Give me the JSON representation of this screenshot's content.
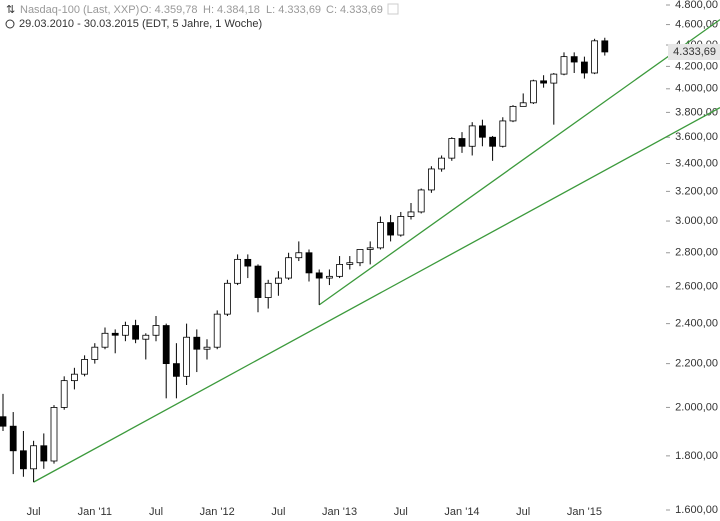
{
  "chart_data": {
    "type": "candlestick",
    "title": "Nasdaq-100 (Last, XXP)",
    "ohlc_summary": [
      "O: 4.359,78",
      "H: 4.384,18",
      "L: 4.333,69",
      "C: 4.333,69"
    ],
    "subtitle": "29.03.2010 - 30.03.2015 (EDT, 5 Jahre, 1 Woche)",
    "categories": [
      null,
      null,
      null,
      "Jul",
      null,
      null,
      null,
      null,
      null,
      "Jan '11",
      null,
      null,
      null,
      null,
      null,
      "Jul",
      null,
      null,
      null,
      null,
      null,
      "Jan '12",
      null,
      null,
      null,
      null,
      null,
      "Jul",
      null,
      null,
      null,
      null,
      null,
      "Jan '13",
      null,
      null,
      null,
      null,
      null,
      "Jul",
      null,
      null,
      null,
      null,
      null,
      "Jan '14",
      null,
      null,
      null,
      null,
      null,
      "Jul",
      null,
      null,
      null,
      null,
      null,
      "Jan '15",
      null,
      null
    ],
    "open": [
      1960,
      1920,
      1820,
      1750,
      1840,
      1780,
      2000,
      2120,
      2150,
      2220,
      2280,
      2350,
      2340,
      2390,
      2320,
      2340,
      2390,
      2200,
      2140,
      2330,
      2270,
      2280,
      2450,
      2620,
      2760,
      2720,
      2540,
      2620,
      2650,
      2770,
      2800,
      2680,
      2650,
      2660,
      2730,
      2740,
      2820,
      2830,
      2990,
      2910,
      3030,
      3060,
      3210,
      3360,
      3440,
      3590,
      3530,
      3690,
      3600,
      3530,
      3730,
      3850,
      3880,
      4070,
      4050,
      4130,
      4290,
      4240,
      4140,
      4440
    ],
    "high": [
      2060,
      1980,
      1900,
      1860,
      1890,
      2010,
      2140,
      2180,
      2240,
      2300,
      2380,
      2370,
      2410,
      2420,
      2350,
      2440,
      2400,
      2300,
      2400,
      2370,
      2320,
      2470,
      2640,
      2790,
      2790,
      2730,
      2640,
      2690,
      2800,
      2870,
      2820,
      2700,
      2700,
      2780,
      2780,
      2820,
      2870,
      3030,
      3040,
      3060,
      3120,
      3220,
      3380,
      3460,
      3600,
      3640,
      3720,
      3740,
      3610,
      3760,
      3860,
      3960,
      4080,
      4120,
      4140,
      4330,
      4330,
      4290,
      4460,
      4470
    ],
    "low": [
      1900,
      1730,
      1720,
      1700,
      1750,
      1770,
      1990,
      2080,
      2140,
      2200,
      2270,
      2250,
      2310,
      2300,
      2220,
      2310,
      2040,
      2040,
      2100,
      2160,
      2220,
      2270,
      2440,
      2610,
      2650,
      2460,
      2480,
      2550,
      2640,
      2750,
      2630,
      2500,
      2610,
      2650,
      2700,
      2720,
      2730,
      2820,
      2870,
      2900,
      3010,
      3050,
      3190,
      3340,
      3420,
      3480,
      3460,
      3530,
      3420,
      3520,
      3720,
      3850,
      3870,
      4010,
      3700,
      4120,
      4140,
      4090,
      4130,
      4300
    ],
    "close": [
      1920,
      1820,
      1750,
      1840,
      1780,
      2000,
      2120,
      2150,
      2220,
      2280,
      2350,
      2340,
      2390,
      2320,
      2340,
      2390,
      2200,
      2140,
      2330,
      2270,
      2280,
      2450,
      2620,
      2760,
      2720,
      2540,
      2620,
      2650,
      2770,
      2800,
      2680,
      2650,
      2660,
      2730,
      2740,
      2820,
      2830,
      2990,
      2910,
      3030,
      3060,
      3210,
      3360,
      3440,
      3590,
      3530,
      3690,
      3600,
      3530,
      3730,
      3850,
      3880,
      4070,
      4050,
      4130,
      4290,
      4240,
      4140,
      4440,
      4334
    ],
    "log_scale": true,
    "ylim": [
      1600,
      4800
    ],
    "yticks": [
      {
        "value": 1600,
        "label": "1.600,00"
      },
      {
        "value": 1800,
        "label": "1.800,00"
      },
      {
        "value": 2000,
        "label": "2.000,00"
      },
      {
        "value": 2200,
        "label": "2.200,00"
      },
      {
        "value": 2400,
        "label": "2.400,00"
      },
      {
        "value": 2600,
        "label": "2.600,00"
      },
      {
        "value": 2800,
        "label": "2.800,00"
      },
      {
        "value": 3000,
        "label": "3.000,00"
      },
      {
        "value": 3200,
        "label": "3.200,00"
      },
      {
        "value": 3400,
        "label": "3.400,00"
      },
      {
        "value": 3600,
        "label": "3.600,00"
      },
      {
        "value": 3800,
        "label": "3.800,00"
      },
      {
        "value": 4000,
        "label": "4.000,00"
      },
      {
        "value": 4200,
        "label": "4.200,00"
      },
      {
        "value": 4400,
        "label": "4.400,00"
      },
      {
        "value": 4600,
        "label": "4.600,00"
      },
      {
        "value": 4800,
        "label": "4.800,00"
      }
    ],
    "last_price": {
      "value": 4333.69,
      "label": "4.333,69"
    },
    "trendlines": [
      {
        "color": "#3c9a3c",
        "values": [
          1700,
          3840
        ]
      },
      {
        "color": "#3c9a3c",
        "values": [
          2500,
          4650
        ]
      }
    ]
  }
}
